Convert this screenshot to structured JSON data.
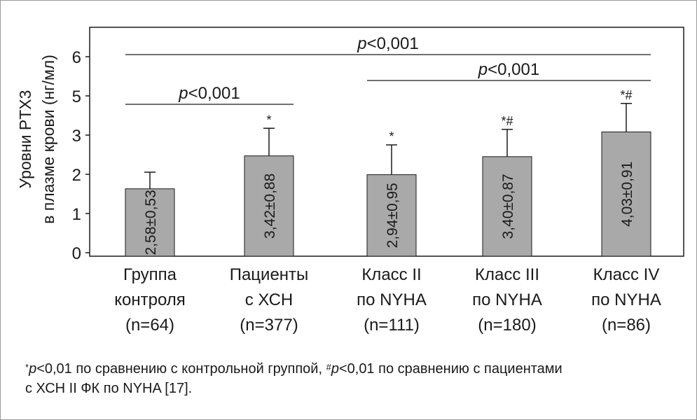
{
  "chart_data": {
    "type": "bar",
    "ylabel_lines": [
      "Уровни PTX3",
      "в плазме крови (нг/мл)"
    ],
    "ylim": [
      0,
      6.5
    ],
    "yticks": [
      0,
      1,
      2,
      3,
      5,
      6
    ],
    "yticks_labels": [
      "0",
      "1",
      "2",
      "3",
      "5",
      "6"
    ],
    "scale_note": "y-axis is piecewise: labeled tick '3' sits at the 3.0 baseline level; tick '5' and '6' are placed at data values 4.0 and 5.0",
    "categories": [
      {
        "lines": [
          "Группа",
          "контроля",
          "(n=64)"
        ]
      },
      {
        "lines": [
          "Пациенты",
          "с ХСН",
          "(n=377)"
        ]
      },
      {
        "lines": [
          "Класс II",
          "по NYHA",
          "(n=111)"
        ]
      },
      {
        "lines": [
          "Класс III",
          "по NYHA",
          "(n=180)"
        ]
      },
      {
        "lines": [
          "Класс IV",
          "по NYHA",
          "(n=86)"
        ]
      }
    ],
    "values": [
      2.58,
      3.42,
      2.94,
      3.4,
      4.03
    ],
    "errors": [
      0.53,
      0.88,
      0.95,
      0.87,
      0.91
    ],
    "bar_labels": [
      "2,58±0,53",
      "3,42±0,88",
      "2,94±0,95",
      "3,40±0,87",
      "4,03±0,91"
    ],
    "markers": [
      "",
      "*",
      "*",
      "*#",
      "*#"
    ],
    "brackets": [
      {
        "from": 0,
        "to": 4,
        "label": "p<0,001"
      },
      {
        "from": 2,
        "to": 4,
        "label": "p<0,001"
      },
      {
        "from": 0,
        "to": 1,
        "label": "p<0,001"
      }
    ],
    "bar_color": "#a9a9a9",
    "grid": false
  },
  "footnote": {
    "part1_mark": "*",
    "part1_p": "p",
    "part1_text": "<0,01 по сравнению с контрольной группой, ",
    "part2_mark": "#",
    "part2_p": "p",
    "part2_text": "<0,01 по сравнению с пациентами",
    "line2": "с ХСН II ФК по NYHA [17]."
  }
}
